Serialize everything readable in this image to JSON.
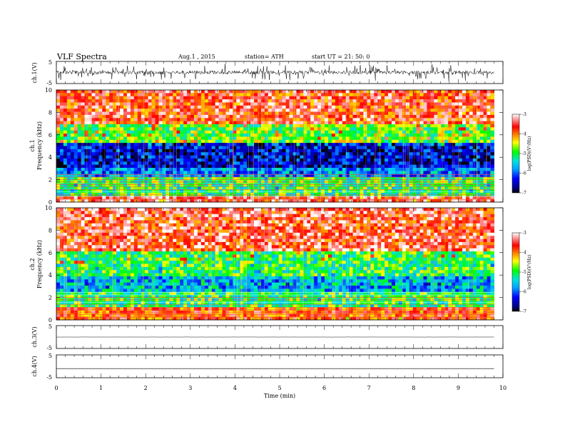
{
  "header": {
    "title": "VLF  Spectra",
    "date": "Aug.1   , 2015",
    "station": "station= ATH",
    "start": "start  UT =    21: 50: 0"
  },
  "chart_data": [
    {
      "type": "line",
      "name": "ch1-waveform",
      "ylabel": "ch.1(V)",
      "ylim": [
        -5,
        5
      ],
      "yticks": [
        "5",
        "-5"
      ],
      "x_range_min": [
        0,
        9.8
      ],
      "trace": "dense noisy waveform, amplitude about ±1.5 V"
    },
    {
      "type": "heatmap",
      "name": "ch1-spectrogram",
      "ylabel_channel": "ch.1",
      "ylabel": "Frequency  (kHz)",
      "ylim": [
        0,
        10
      ],
      "yticks": [
        "0",
        "2",
        "4",
        "6",
        "8",
        "10"
      ],
      "x_range_min": [
        0,
        9.8
      ],
      "colorbar": {
        "label": "log(PSD)(V²/Hz)",
        "range": [
          -7,
          -3
        ],
        "ticks": [
          "-3",
          "-4",
          "-5",
          "-6",
          "-7"
        ],
        "colors": [
          "#000000",
          "#000080",
          "#0000ff",
          "#00a0ff",
          "#00e0e0",
          "#00ff00",
          "#ffff00",
          "#ff8000",
          "#ff0000",
          "#ffffff"
        ]
      },
      "bands": [
        {
          "f_khz": [
            0,
            0.6
          ],
          "level": -3.5
        },
        {
          "f_khz": [
            0.6,
            2.2
          ],
          "level": -5.0
        },
        {
          "f_khz": [
            2.2,
            3.0
          ],
          "level": -5.8
        },
        {
          "f_khz": [
            3.0,
            5.2
          ],
          "level": -6.4
        },
        {
          "f_khz": [
            5.2,
            7.0
          ],
          "level": -4.8
        },
        {
          "f_khz": [
            7.0,
            10
          ],
          "level": -3.7
        }
      ]
    },
    {
      "type": "heatmap",
      "name": "ch2-spectrogram",
      "ylabel_channel": "ch.2",
      "ylabel": "Frequency  (kHz)",
      "ylim": [
        0,
        10
      ],
      "yticks": [
        "0",
        "2",
        "4",
        "6",
        "8",
        "10"
      ],
      "x_range_min": [
        0,
        9.8
      ],
      "colorbar": {
        "label": "log(PSD)(V²/Hz)",
        "range": [
          -7,
          -3
        ],
        "ticks": [
          "-3",
          "-4",
          "-5",
          "-6",
          "-7"
        ],
        "colors": [
          "#000000",
          "#000080",
          "#0000ff",
          "#00a0ff",
          "#00e0e0",
          "#00ff00",
          "#ffff00",
          "#ff8000",
          "#ff0000",
          "#ffffff"
        ]
      },
      "bands": [
        {
          "f_khz": [
            0,
            1.2
          ],
          "level": -3.8
        },
        {
          "f_khz": [
            1.2,
            2.5
          ],
          "level": -5.0
        },
        {
          "f_khz": [
            2.5,
            4.0
          ],
          "level": -5.6
        },
        {
          "f_khz": [
            4.0,
            6.0
          ],
          "level": -5.0
        },
        {
          "f_khz": [
            6.0,
            10
          ],
          "level": -3.6
        }
      ]
    },
    {
      "type": "line",
      "name": "ch3-waveform",
      "ylabel": "ch.3(V)",
      "ylim": [
        -5,
        5
      ],
      "yticks": [
        "5",
        "-5"
      ],
      "x_range_min": [
        0,
        9.8
      ],
      "trace": "flat near 0 V with small spikes"
    },
    {
      "type": "line",
      "name": "ch4-waveform",
      "ylabel": "ch.4(V)",
      "ylim": [
        -5,
        5
      ],
      "yticks": [
        "5",
        "-5"
      ],
      "x_range_min": [
        0,
        9.8
      ],
      "trace": "flat near -1 V"
    }
  ],
  "xaxis": {
    "label": "Time  (min)",
    "xlim": [
      0,
      10
    ],
    "ticks": [
      "0",
      "1",
      "2",
      "3",
      "4",
      "5",
      "6",
      "7",
      "8",
      "9",
      "10"
    ]
  }
}
